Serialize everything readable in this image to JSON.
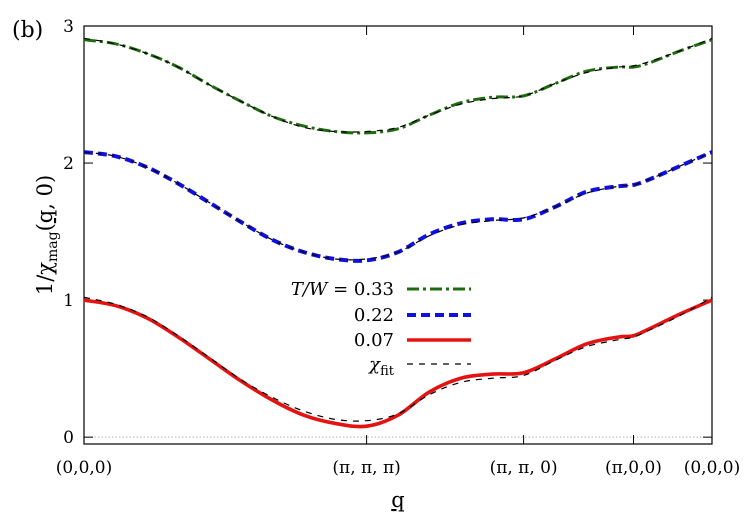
{
  "panel_label": "(b)",
  "chart_data": {
    "type": "line",
    "xlabel": "q",
    "ylabel": "1/χmag(q, 0)",
    "ylabel_main": "1/χ",
    "ylabel_sub": "mag",
    "ylabel_arg_q": "q",
    "ylabel_arg_rest": ", 0)",
    "ylabel_open": "(",
    "xlim": [
      0,
      4
    ],
    "ylim": [
      -0.05,
      3
    ],
    "grid": false,
    "zero_line": true,
    "x_ticks": [
      {
        "x": 0,
        "label": "(0,0,0)"
      },
      {
        "x": 1.8,
        "label": "(π, π, π)"
      },
      {
        "x": 2.8,
        "label": "(π, π, 0)"
      },
      {
        "x": 3.5,
        "label": "(π,0,0)"
      },
      {
        "x": 4.0,
        "label": "(0,0,0)"
      }
    ],
    "y_ticks": [
      {
        "y": 0,
        "label": "0"
      },
      {
        "y": 1,
        "label": "1"
      },
      {
        "y": 2,
        "label": "2"
      },
      {
        "y": 3,
        "label": "3"
      }
    ],
    "legend_position": "center",
    "legend_title_prefix": "T/W = ",
    "series": [
      {
        "name": "0.33",
        "color": "#1e6b0e",
        "style": "dashdot",
        "x": [
          0,
          0.2,
          0.4,
          0.6,
          0.8,
          1.0,
          1.2,
          1.4,
          1.6,
          1.8,
          2.0,
          2.2,
          2.4,
          2.6,
          2.8,
          3.0,
          3.2,
          3.4,
          3.5,
          3.6,
          3.8,
          4.0
        ],
        "y": [
          2.9,
          2.87,
          2.8,
          2.7,
          2.57,
          2.45,
          2.34,
          2.27,
          2.23,
          2.22,
          2.25,
          2.35,
          2.44,
          2.48,
          2.49,
          2.58,
          2.67,
          2.7,
          2.7,
          2.73,
          2.82,
          2.9
        ]
      },
      {
        "name": "0.22",
        "color": "#1010e0",
        "style": "dashed",
        "x": [
          0,
          0.2,
          0.4,
          0.6,
          0.8,
          1.0,
          1.2,
          1.4,
          1.6,
          1.8,
          2.0,
          2.2,
          2.4,
          2.6,
          2.8,
          3.0,
          3.2,
          3.4,
          3.5,
          3.6,
          3.8,
          4.0
        ],
        "y": [
          2.08,
          2.05,
          1.97,
          1.85,
          1.71,
          1.57,
          1.44,
          1.35,
          1.3,
          1.29,
          1.35,
          1.48,
          1.56,
          1.59,
          1.59,
          1.68,
          1.79,
          1.83,
          1.84,
          1.88,
          1.98,
          2.08
        ]
      },
      {
        "name": "0.07",
        "color": "#e51212",
        "style": "solid",
        "x": [
          0,
          0.2,
          0.4,
          0.6,
          0.8,
          1.0,
          1.2,
          1.4,
          1.6,
          1.8,
          2.0,
          2.2,
          2.4,
          2.6,
          2.8,
          3.0,
          3.2,
          3.4,
          3.5,
          3.6,
          3.8,
          4.0
        ],
        "y": [
          1.0,
          0.96,
          0.87,
          0.73,
          0.57,
          0.41,
          0.27,
          0.16,
          0.1,
          0.08,
          0.16,
          0.33,
          0.43,
          0.46,
          0.47,
          0.57,
          0.68,
          0.73,
          0.74,
          0.79,
          0.9,
          1.0
        ]
      },
      {
        "name": "χfit",
        "name_main": "χ",
        "name_sub": "fit",
        "color": "#000000",
        "style": "fit",
        "x": [
          0,
          0.2,
          0.4,
          0.6,
          0.8,
          1.0,
          1.2,
          1.4,
          1.6,
          1.8,
          2.0,
          2.2,
          2.4,
          2.6,
          2.8,
          3.0,
          3.2,
          3.4,
          3.5,
          3.6,
          3.8,
          4.0
        ],
        "y": [
          1.02,
          0.97,
          0.88,
          0.74,
          0.58,
          0.42,
          0.29,
          0.19,
          0.13,
          0.12,
          0.17,
          0.31,
          0.4,
          0.43,
          0.45,
          0.56,
          0.66,
          0.71,
          0.73,
          0.78,
          0.89,
          1.02
        ]
      }
    ],
    "fit_overlays": [
      {
        "x": [
          0,
          0.2,
          0.4,
          0.6,
          0.8,
          1.0,
          1.2,
          1.4,
          1.6,
          1.8,
          2.0,
          2.2,
          2.4,
          2.6,
          2.8,
          3.0,
          3.2,
          3.4,
          3.5,
          3.6,
          3.8,
          4.0
        ],
        "y": [
          2.91,
          2.87,
          2.8,
          2.7,
          2.57,
          2.45,
          2.34,
          2.26,
          2.23,
          2.23,
          2.26,
          2.35,
          2.43,
          2.47,
          2.49,
          2.58,
          2.66,
          2.7,
          2.71,
          2.74,
          2.82,
          2.91
        ]
      },
      {
        "x": [
          0,
          0.2,
          0.4,
          0.6,
          0.8,
          1.0,
          1.2,
          1.4,
          1.6,
          1.8,
          2.0,
          2.2,
          2.4,
          2.6,
          2.8,
          3.0,
          3.2,
          3.4,
          3.5,
          3.6,
          3.8,
          4.0
        ],
        "y": [
          2.08,
          2.05,
          1.97,
          1.85,
          1.71,
          1.57,
          1.44,
          1.35,
          1.3,
          1.3,
          1.35,
          1.47,
          1.55,
          1.58,
          1.6,
          1.68,
          1.78,
          1.83,
          1.84,
          1.88,
          1.98,
          2.08
        ]
      }
    ]
  }
}
